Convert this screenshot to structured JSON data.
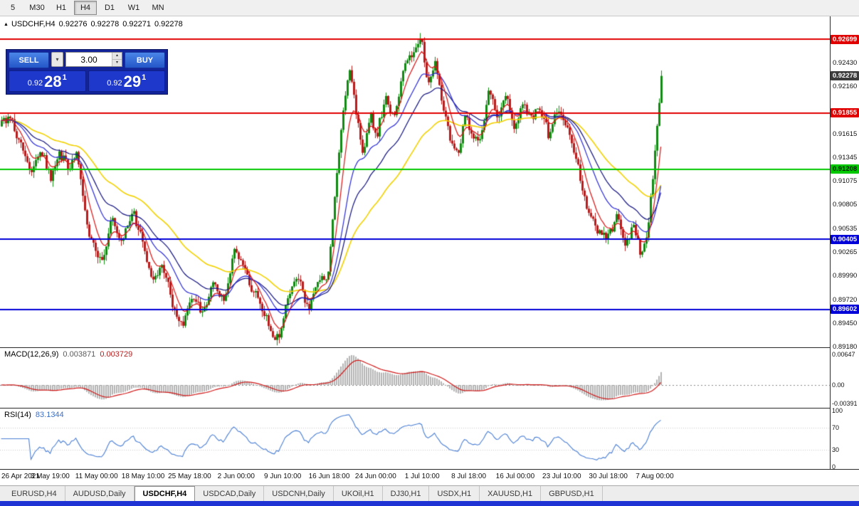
{
  "toolbar": {
    "timeframes": [
      {
        "label": "5",
        "active": false
      },
      {
        "label": "M30",
        "active": false
      },
      {
        "label": "H1",
        "active": false
      },
      {
        "label": "H4",
        "active": true
      },
      {
        "label": "D1",
        "active": false
      },
      {
        "label": "W1",
        "active": false
      },
      {
        "label": "MN",
        "active": false
      }
    ]
  },
  "chart_header": {
    "symbol": "USDCHF,H4",
    "open": "0.92276",
    "high": "0.92278",
    "low": "0.92271",
    "close": "0.92278"
  },
  "one_click_panel": {
    "sell_label": "SELL",
    "buy_label": "BUY",
    "volume": "3.00",
    "sell_price": {
      "prefix": "0.92",
      "big": "28",
      "sup": "1"
    },
    "buy_price": {
      "prefix": "0.92",
      "big": "29",
      "sup": "1"
    }
  },
  "price_axis": {
    "ticks": [
      "0.92430",
      "0.92160",
      "0.91615",
      "0.91345",
      "0.91075",
      "0.90805",
      "0.90535",
      "0.90265",
      "0.89990",
      "0.89720",
      "0.89450",
      "0.89180"
    ],
    "badges": [
      {
        "value": "0.92699",
        "bg": "#e00000",
        "fg": "#ffffff"
      },
      {
        "value": "0.92278",
        "bg": "#3c3c3c",
        "fg": "#ffffff"
      },
      {
        "value": "0.91855",
        "bg": "#e00000",
        "fg": "#ffffff"
      },
      {
        "value": "0.91208",
        "bg": "#00c800",
        "fg": "#002200"
      },
      {
        "value": "0.90405",
        "bg": "#0000d8",
        "fg": "#ffffff"
      },
      {
        "value": "0.89602",
        "bg": "#0000d8",
        "fg": "#ffffff"
      }
    ]
  },
  "macd_panel": {
    "name": "MACD(12,26,9)",
    "value_main": "0.003871",
    "value_signal": "0.003729",
    "axis": [
      {
        "label": "0.00647",
        "value": 0.00647
      },
      {
        "label": "0.00",
        "value": 0
      },
      {
        "label": "-0.00391",
        "value": -0.00391
      }
    ]
  },
  "rsi_panel": {
    "name": "RSI(14)",
    "value": "83.1344",
    "axis": [
      {
        "label": "100",
        "value": 100
      },
      {
        "label": "70",
        "value": 70
      },
      {
        "label": "30",
        "value": 30
      },
      {
        "label": "0",
        "value": 0
      }
    ]
  },
  "time_axis": [
    "26 Apr 2021",
    "3 May 19:00",
    "11 May 00:00",
    "18 May 10:00",
    "25 May 18:00",
    "2 Jun 00:00",
    "9 Jun 10:00",
    "16 Jun 18:00",
    "24 Jun 00:00",
    "1 Jul 10:00",
    "8 Jul 18:00",
    "16 Jul 00:00",
    "23 Jul 10:00",
    "30 Jul 18:00",
    "7 Aug 00:00"
  ],
  "tabs": [
    {
      "label": "EURUSD,H4",
      "active": false
    },
    {
      "label": "AUDUSD,Daily",
      "active": false
    },
    {
      "label": "USDCHF,H4",
      "active": true
    },
    {
      "label": "USDCAD,Daily",
      "active": false
    },
    {
      "label": "USDCNH,Daily",
      "active": false
    },
    {
      "label": "UKOil,H1",
      "active": false
    },
    {
      "label": "DJ30,H1",
      "active": false
    },
    {
      "label": "USDX,H1",
      "active": false
    },
    {
      "label": "XAUUSD,H1",
      "active": false
    },
    {
      "label": "GBPUSD,H1",
      "active": false
    }
  ],
  "chart_data": {
    "type": "candlestick",
    "symbol": "USDCHF",
    "timeframe": "H4",
    "bid": 0.92278,
    "price_range": [
      0.8917,
      0.9296
    ],
    "hlines": [
      {
        "price": 0.92699,
        "color": "#e00000"
      },
      {
        "price": 0.91855,
        "color": "#e00000"
      },
      {
        "price": 0.91208,
        "color": "#00c800"
      },
      {
        "price": 0.90405,
        "color": "#0000d8"
      },
      {
        "price": 0.89602,
        "color": "#0000d8"
      }
    ],
    "price_path_anchors": [
      [
        0,
        0.917
      ],
      [
        12,
        0.9183
      ],
      [
        28,
        0.9148
      ],
      [
        43,
        0.9118
      ],
      [
        56,
        0.9146
      ],
      [
        70,
        0.911
      ],
      [
        82,
        0.914
      ],
      [
        96,
        0.9122
      ],
      [
        107,
        0.9136
      ],
      [
        121,
        0.9055
      ],
      [
        136,
        0.902
      ],
      [
        144,
        0.9016
      ],
      [
        156,
        0.9066
      ],
      [
        170,
        0.9036
      ],
      [
        186,
        0.9072
      ],
      [
        200,
        0.9038
      ],
      [
        212,
        0.8996
      ],
      [
        228,
        0.9012
      ],
      [
        242,
        0.8966
      ],
      [
        256,
        0.894
      ],
      [
        270,
        0.8978
      ],
      [
        284,
        0.8956
      ],
      [
        298,
        0.8992
      ],
      [
        313,
        0.897
      ],
      [
        330,
        0.903
      ],
      [
        346,
        0.8996
      ],
      [
        363,
        0.897
      ],
      [
        380,
        0.8936
      ],
      [
        391,
        0.8925
      ],
      [
        405,
        0.898
      ],
      [
        419,
        0.8996
      ],
      [
        432,
        0.896
      ],
      [
        446,
        0.899
      ],
      [
        460,
        0.9
      ],
      [
        472,
        0.911
      ],
      [
        481,
        0.919
      ],
      [
        491,
        0.9238
      ],
      [
        500,
        0.9185
      ],
      [
        509,
        0.9132
      ],
      [
        519,
        0.9186
      ],
      [
        528,
        0.9158
      ],
      [
        541,
        0.9205
      ],
      [
        553,
        0.9178
      ],
      [
        567,
        0.9235
      ],
      [
        581,
        0.9258
      ],
      [
        592,
        0.927
      ],
      [
        601,
        0.9215
      ],
      [
        610,
        0.9248
      ],
      [
        620,
        0.92
      ],
      [
        631,
        0.916
      ],
      [
        642,
        0.9135
      ],
      [
        653,
        0.9185
      ],
      [
        662,
        0.9158
      ],
      [
        674,
        0.915
      ],
      [
        686,
        0.9213
      ],
      [
        698,
        0.918
      ],
      [
        710,
        0.921
      ],
      [
        722,
        0.9168
      ],
      [
        734,
        0.9196
      ],
      [
        746,
        0.918
      ],
      [
        758,
        0.9192
      ],
      [
        770,
        0.916
      ],
      [
        782,
        0.9188
      ],
      [
        795,
        0.9175
      ],
      [
        810,
        0.9128
      ],
      [
        825,
        0.9072
      ],
      [
        840,
        0.9048
      ],
      [
        852,
        0.904
      ],
      [
        866,
        0.9068
      ],
      [
        878,
        0.9036
      ],
      [
        891,
        0.9056
      ],
      [
        900,
        0.9021
      ],
      [
        908,
        0.9045
      ],
      [
        916,
        0.9105
      ],
      [
        923,
        0.9175
      ],
      [
        930,
        0.9228
      ]
    ],
    "indicators": {
      "macd": {
        "fast": 12,
        "slow": 26,
        "signal": 9,
        "current_main": 0.003871,
        "current_signal": 0.003729,
        "axis_max": 0.00647,
        "axis_min": -0.00391
      },
      "rsi": {
        "period": 14,
        "current": 83.1344,
        "levels": [
          70,
          30
        ]
      }
    },
    "render": {
      "candle_area_width": 930,
      "candles_n": 310,
      "seed": 20210807,
      "body_noise": 0.0011,
      "wick_noise": 0.0007,
      "up_color": "#128a12",
      "down_color": "#b81c1c",
      "hist_color": "#b4b4b4",
      "macd_signal_color": "#d01818",
      "rsi_color": "#4a7fd4",
      "level_color": "#c8c8c8",
      "moving_averages": [
        {
          "period": 58,
          "color": "#f2d200",
          "width": 1.6
        },
        {
          "period": 32,
          "color": "#12127e",
          "width": 1.2
        },
        {
          "period": 20,
          "color": "#2c2cd8",
          "width": 1.2
        },
        {
          "period": 8,
          "color": "#dc1414",
          "width": 1.2
        }
      ]
    }
  }
}
